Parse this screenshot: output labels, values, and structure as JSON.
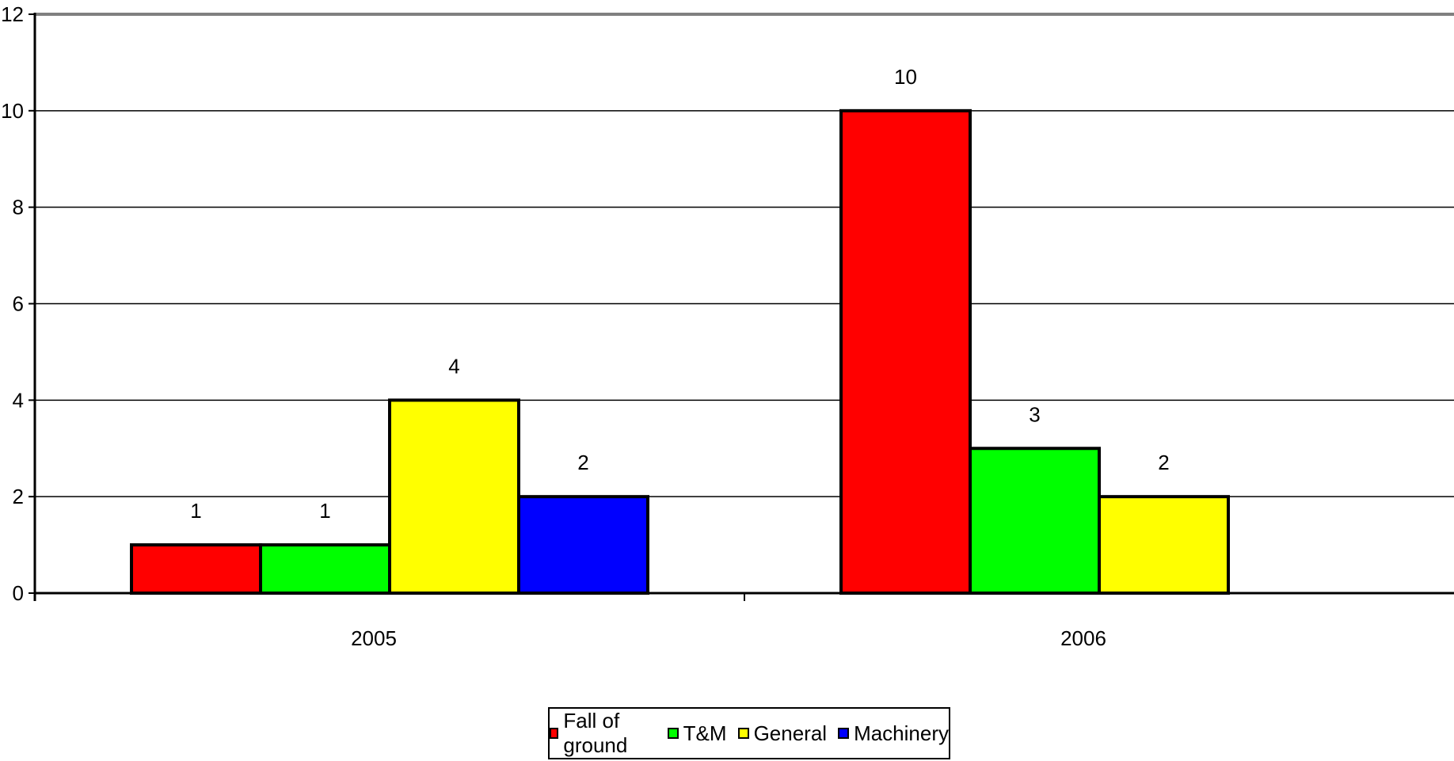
{
  "chart_data": {
    "type": "bar",
    "categories": [
      "2005",
      "2006"
    ],
    "series": [
      {
        "name": "Fall of ground",
        "color": "#ff0000",
        "values": [
          1,
          10
        ]
      },
      {
        "name": "T&M",
        "color": "#00ff00",
        "values": [
          1,
          3
        ]
      },
      {
        "name": "General",
        "color": "#ffff00",
        "values": [
          4,
          2
        ]
      },
      {
        "name": "Machinery",
        "color": "#0000ff",
        "values": [
          2,
          null
        ]
      }
    ],
    "yticks": [
      0,
      2,
      4,
      6,
      8,
      10,
      12
    ],
    "ylim": [
      0,
      12
    ],
    "grid": true,
    "legend_position": "bottom",
    "title": "",
    "xlabel": "",
    "ylabel": ""
  }
}
